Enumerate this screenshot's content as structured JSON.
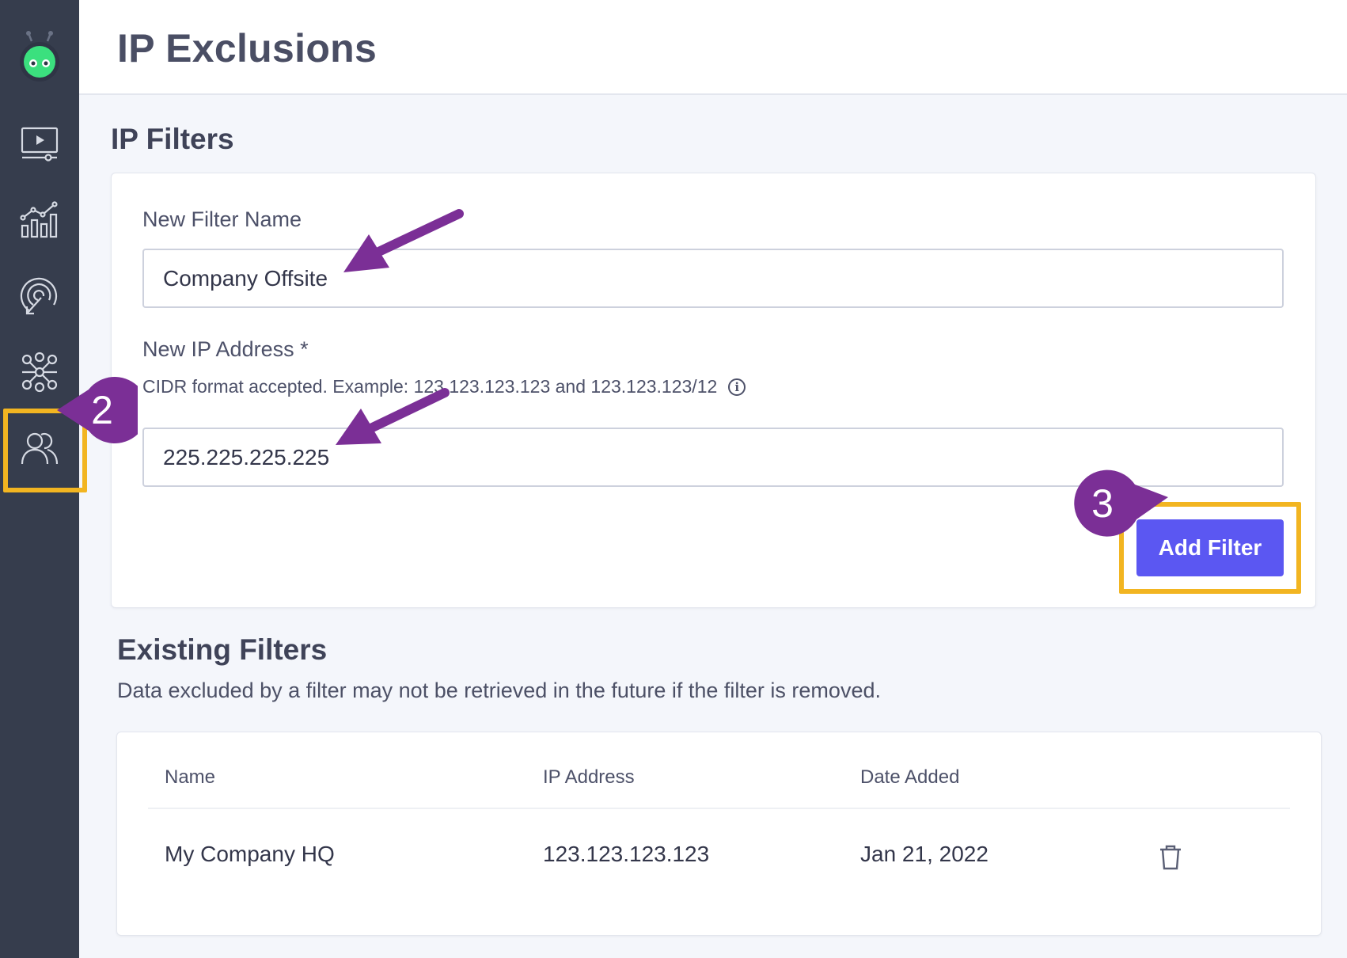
{
  "header": {
    "title": "IP Exclusions"
  },
  "sidebar": {
    "items": [
      {
        "name": "logo",
        "icon": "robot-logo-icon"
      },
      {
        "name": "videos",
        "icon": "video-player-icon"
      },
      {
        "name": "analytics",
        "icon": "analytics-chart-icon"
      },
      {
        "name": "targeting",
        "icon": "target-cursor-icon"
      },
      {
        "name": "integrations",
        "icon": "network-hub-icon"
      },
      {
        "name": "users",
        "icon": "users-icon",
        "highlighted": true
      }
    ]
  },
  "ip_filters": {
    "title": "IP Filters",
    "name_label": "New Filter Name",
    "name_value": "Company Offsite",
    "ip_label": "New IP Address *",
    "ip_hint": "CIDR format accepted. Example: 123.123.123.123 and 123.123.123/12",
    "ip_value": "225.225.225.225",
    "add_button": "Add Filter"
  },
  "existing": {
    "title": "Existing Filters",
    "subtitle": "Data excluded by a filter may not be retrieved in the future if the filter is removed.",
    "columns": [
      "Name",
      "IP Address",
      "Date Added"
    ],
    "rows": [
      {
        "name": "My Company HQ",
        "ip": "123.123.123.123",
        "date": "Jan 21, 2022"
      }
    ]
  },
  "annotations": {
    "step2": "2",
    "step3": "3",
    "colors": {
      "badge": "#7b2f96",
      "highlight": "#f2b521",
      "button": "#5b57f2",
      "sidebar": "#363d4d"
    }
  }
}
